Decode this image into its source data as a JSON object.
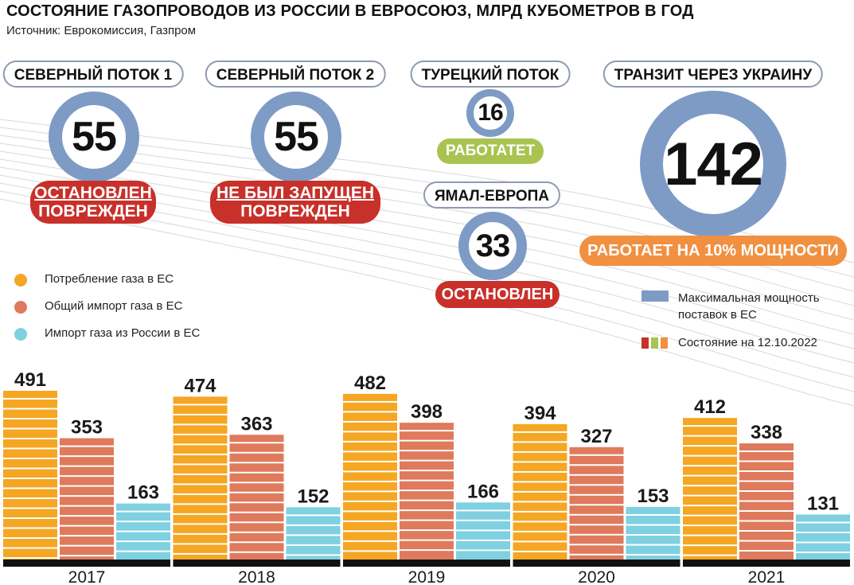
{
  "header": {
    "title": "СОСТОЯНИЕ ГАЗОПРОВОДОВ ИЗ РОССИИ В ЕВРОСОЮЗ, МЛРД КУБОМЕТРОВ В ГОД",
    "source": "Источник: Еврокомиссия, Газпром"
  },
  "pipelines": [
    {
      "name": "СЕВЕРНЫЙ ПОТОК 1",
      "capacity": "55",
      "status": "ОСТАНОВЛЕН",
      "status2": "ПОВРЕЖДЕН",
      "status_color": "#c8302a"
    },
    {
      "name": "СЕВЕРНЫЙ ПОТОК 2",
      "capacity": "55",
      "status": "НЕ БЫЛ ЗАПУЩЕН",
      "status2": "ПОВРЕЖДЕН",
      "status_color": "#c8302a"
    },
    {
      "name": "ТУРЕЦКИЙ ПОТОК",
      "capacity": "16",
      "status": "РАБОТАТЕТ",
      "status_color": "#a9c350"
    },
    {
      "name": "ЯМАЛ-ЕВРОПА",
      "capacity": "33",
      "status": "ОСТАНОВЛЕН",
      "status_color": "#c8302a"
    },
    {
      "name": "ТРАНЗИТ ЧЕРЕЗ УКРАИНУ",
      "capacity": "142",
      "status": "РАБОТАЕТ НА 10% МОЩНОСТИ",
      "status_color": "#f09040"
    }
  ],
  "legend": {
    "consumption": "Потребление газа в ЕС",
    "total_import": "Общий импорт газа в ЕС",
    "russia_import": "Импорт газа из России в ЕС",
    "max_capacity_line1": "Максимальная мощность",
    "max_capacity_line2": "поставок в ЕС",
    "status_date": "Состояние на 12.10.2022"
  },
  "colors": {
    "consumption": "#f5a623",
    "total_import": "#df7a5c",
    "russia_import": "#7fd0e0",
    "capacity_ring": "#7e9bc6",
    "status_red": "#c8302a",
    "status_green": "#a9c350",
    "status_orange": "#f09040"
  },
  "chart_data": {
    "type": "bar",
    "categories": [
      "2017",
      "2018",
      "2019",
      "2020",
      "2021"
    ],
    "series": [
      {
        "name": "Потребление газа в ЕС",
        "values": [
          491,
          474,
          482,
          394,
          412
        ]
      },
      {
        "name": "Общий импорт газа в ЕС",
        "values": [
          353,
          363,
          398,
          327,
          338
        ]
      },
      {
        "name": "Импорт газа из России в ЕС",
        "values": [
          163,
          152,
          166,
          153,
          131
        ]
      }
    ],
    "title": "",
    "xlabel": "",
    "ylabel": "",
    "ylim": [
      0,
      500
    ],
    "grid": false,
    "legend_position": "left"
  }
}
